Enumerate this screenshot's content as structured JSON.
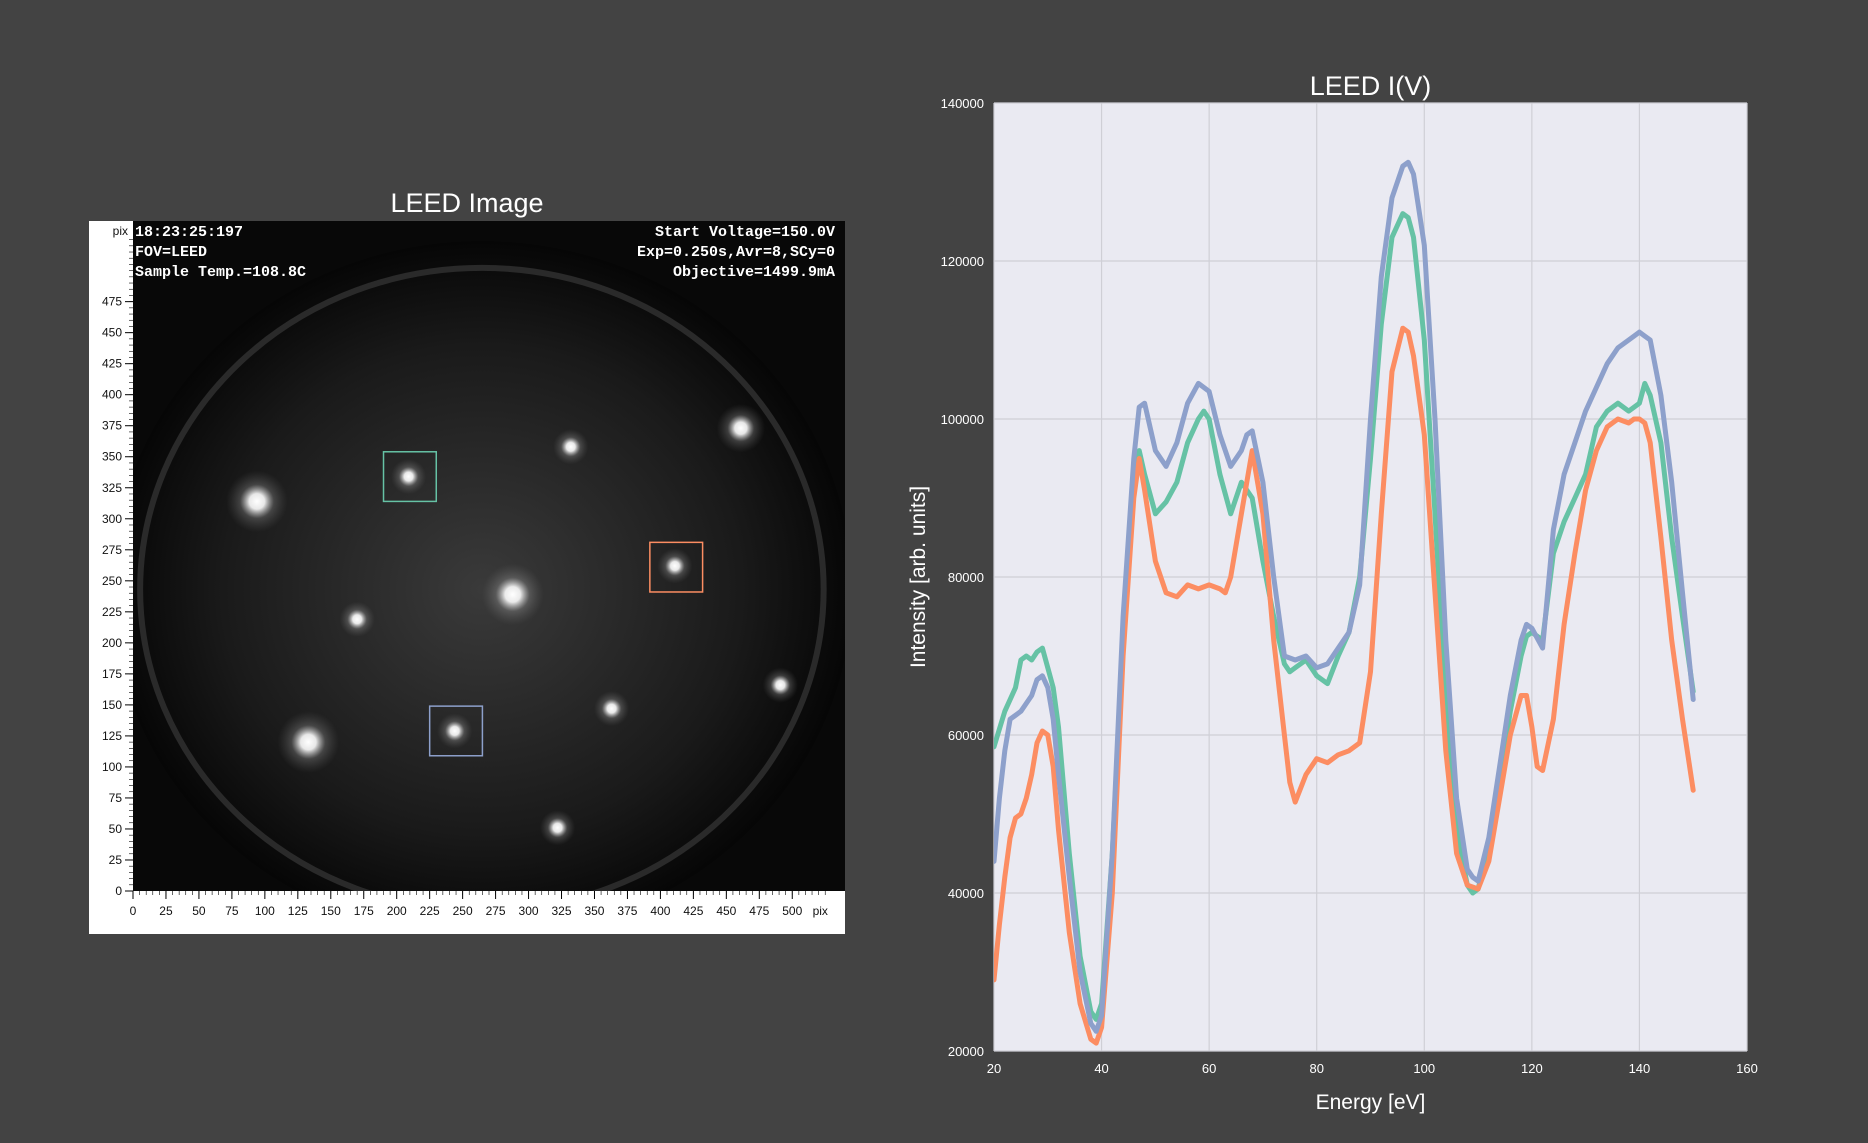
{
  "left_panel": {
    "title": "LEED Image",
    "unit_label_y": "pix",
    "unit_label_x": "pix",
    "overlay_left": [
      "18:23:25:197",
      "FOV=LEED",
      "Sample Temp.=108.8C"
    ],
    "overlay_right": [
      "Start Voltage=150.0V",
      "Exp=0.250s,Avr=8,SCy=0",
      "Objective=1499.9mA"
    ],
    "x_ticks": [
      0,
      25,
      50,
      75,
      100,
      125,
      150,
      175,
      200,
      225,
      250,
      275,
      300,
      325,
      350,
      375,
      400,
      425,
      450,
      475,
      500
    ],
    "y_ticks": [
      0,
      25,
      50,
      75,
      100,
      125,
      150,
      175,
      200,
      225,
      250,
      275,
      300,
      325,
      350,
      375,
      400,
      425,
      450,
      475
    ],
    "range": [
      0,
      540
    ],
    "spots": [
      {
        "x": 94,
        "y": 314,
        "size": "large"
      },
      {
        "x": 209,
        "y": 334,
        "size": "small"
      },
      {
        "x": 332,
        "y": 358,
        "size": "small"
      },
      {
        "x": 461,
        "y": 373,
        "size": "medium"
      },
      {
        "x": 288,
        "y": 239,
        "size": "large"
      },
      {
        "x": 170,
        "y": 219,
        "size": "small"
      },
      {
        "x": 411,
        "y": 262,
        "size": "small"
      },
      {
        "x": 491,
        "y": 166,
        "size": "small"
      },
      {
        "x": 363,
        "y": 147,
        "size": "small"
      },
      {
        "x": 133,
        "y": 120,
        "size": "large"
      },
      {
        "x": 244,
        "y": 129,
        "size": "small"
      },
      {
        "x": 322,
        "y": 51,
        "size": "small"
      }
    ],
    "roi_boxes": [
      {
        "x0": 190,
        "x1": 230,
        "y0": 314,
        "y1": 354,
        "color": "#66c2a5"
      },
      {
        "x0": 392,
        "x1": 432,
        "y0": 241,
        "y1": 281,
        "color": "#fc8d62"
      },
      {
        "x0": 225,
        "x1": 265,
        "y0": 109,
        "y1": 149,
        "color": "#8da0cb"
      }
    ]
  },
  "chart_data": {
    "type": "line",
    "title": "LEED I(V)",
    "xlabel": "Energy [eV]",
    "ylabel": "Intensity [arb. units]",
    "xlim": [
      20,
      160
    ],
    "ylim": [
      20000,
      140000
    ],
    "x_ticks": [
      20,
      40,
      60,
      80,
      100,
      120,
      140,
      160
    ],
    "y_ticks": [
      20000,
      40000,
      60000,
      80000,
      100000,
      120000,
      140000
    ],
    "grid": true,
    "background": "#eaeaf2",
    "series": [
      {
        "color": "#66c2a5",
        "x": [
          20,
          22,
          24,
          25,
          26,
          27,
          28,
          29,
          30,
          31,
          32,
          34,
          36,
          38,
          39,
          40,
          42,
          44,
          46,
          47,
          48,
          50,
          52,
          54,
          56,
          58,
          59,
          60,
          62,
          64,
          66,
          68,
          70,
          72,
          74,
          75,
          76,
          78,
          80,
          82,
          84,
          86,
          88,
          90,
          92,
          94,
          96,
          97,
          98,
          100,
          102,
          104,
          106,
          108,
          109,
          110,
          112,
          114,
          116,
          118,
          119,
          120,
          122,
          124,
          126,
          128,
          130,
          132,
          134,
          136,
          138,
          140,
          141,
          142,
          144,
          146,
          148,
          150
        ],
        "values": [
          58500,
          63000,
          66000,
          69500,
          70000,
          69500,
          70500,
          71000,
          68500,
          66000,
          61000,
          45000,
          32000,
          25000,
          24000,
          26000,
          45000,
          72000,
          91000,
          96000,
          93000,
          88000,
          89500,
          92000,
          97000,
          100000,
          101000,
          100000,
          93000,
          88000,
          92000,
          90000,
          82000,
          75000,
          69000,
          68000,
          68500,
          69500,
          67500,
          66500,
          70000,
          73000,
          80000,
          95000,
          112000,
          123000,
          126000,
          125500,
          123000,
          110000,
          88000,
          64000,
          48000,
          41000,
          40000,
          40500,
          46000,
          54000,
          63000,
          70000,
          72500,
          73000,
          72000,
          83000,
          87000,
          90000,
          93000,
          99000,
          101000,
          102000,
          101000,
          102000,
          104500,
          103000,
          97000,
          85000,
          75000,
          65500
        ]
      },
      {
        "color": "#fc8d62",
        "x": [
          20,
          21,
          22,
          23,
          24,
          25,
          26,
          27,
          28,
          29,
          30,
          31,
          32,
          34,
          36,
          38,
          39,
          40,
          42,
          44,
          46,
          47,
          48,
          50,
          52,
          54,
          56,
          58,
          60,
          62,
          63,
          64,
          66,
          68,
          70,
          72,
          74,
          75,
          76,
          78,
          80,
          82,
          84,
          86,
          88,
          90,
          92,
          94,
          96,
          97,
          98,
          100,
          102,
          104,
          106,
          108,
          110,
          112,
          114,
          116,
          118,
          119,
          120,
          121,
          122,
          124,
          126,
          128,
          130,
          132,
          134,
          136,
          138,
          139,
          140,
          141,
          142,
          144,
          146,
          148,
          150
        ],
        "values": [
          29000,
          36000,
          42000,
          47000,
          49500,
          50000,
          52000,
          55000,
          59000,
          60500,
          60000,
          56000,
          48000,
          35000,
          26000,
          21500,
          21000,
          23000,
          40000,
          70000,
          90000,
          95000,
          91000,
          82000,
          78000,
          77500,
          79000,
          78500,
          79000,
          78500,
          78000,
          80000,
          88000,
          96000,
          88000,
          72000,
          60000,
          54000,
          51500,
          55000,
          57000,
          56500,
          57500,
          58000,
          59000,
          68000,
          88000,
          106000,
          111500,
          111000,
          108000,
          98000,
          78000,
          58000,
          45000,
          41000,
          40500,
          44000,
          52000,
          60000,
          65000,
          65000,
          61000,
          56000,
          55500,
          62000,
          74000,
          83000,
          91000,
          96000,
          99000,
          100000,
          99500,
          100000,
          100000,
          99500,
          97000,
          85000,
          72000,
          62000,
          53000
        ]
      },
      {
        "color": "#8da0cb",
        "x": [
          20,
          21,
          22,
          23,
          24,
          25,
          26,
          27,
          28,
          29,
          30,
          31,
          32,
          34,
          36,
          38,
          39,
          40,
          42,
          44,
          46,
          47,
          48,
          50,
          52,
          54,
          56,
          58,
          60,
          62,
          64,
          66,
          67,
          68,
          70,
          72,
          74,
          76,
          78,
          80,
          82,
          84,
          86,
          88,
          90,
          92,
          94,
          96,
          97,
          98,
          100,
          102,
          104,
          106,
          108,
          109,
          110,
          112,
          114,
          116,
          118,
          119,
          120,
          122,
          124,
          126,
          128,
          130,
          132,
          134,
          136,
          138,
          139,
          140,
          141,
          142,
          144,
          146,
          148,
          150
        ],
        "values": [
          44000,
          52000,
          58000,
          62000,
          62500,
          63000,
          64000,
          65000,
          67000,
          67500,
          66000,
          62000,
          55000,
          42000,
          30000,
          23500,
          22500,
          24500,
          45000,
          75000,
          95000,
          101500,
          102000,
          96000,
          94000,
          97000,
          102000,
          104500,
          103500,
          98000,
          94000,
          96000,
          98000,
          98500,
          92000,
          80000,
          70000,
          69500,
          70000,
          68500,
          69000,
          71000,
          73000,
          79000,
          100000,
          118000,
          128000,
          132000,
          132500,
          131000,
          122000,
          100000,
          72000,
          52000,
          43000,
          42000,
          41500,
          47000,
          56000,
          65000,
          72000,
          74000,
          73500,
          71000,
          86000,
          93000,
          97000,
          101000,
          104000,
          107000,
          109000,
          110000,
          110500,
          111000,
          110500,
          110000,
          103000,
          92000,
          78000,
          64500
        ]
      }
    ]
  }
}
